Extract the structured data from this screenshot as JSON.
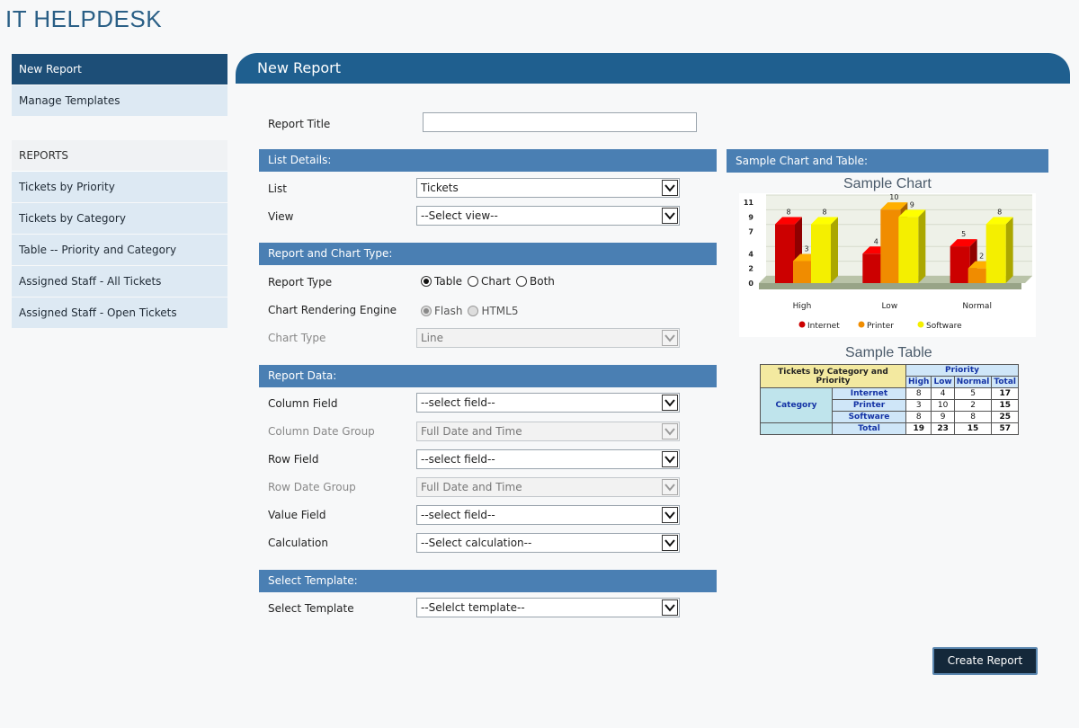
{
  "app": {
    "title": "IT HELPDESK"
  },
  "sidebar": {
    "items": [
      {
        "label": "New Report"
      },
      {
        "label": "Manage Templates"
      }
    ],
    "reports_heading": "REPORTS",
    "reports": [
      {
        "label": "Tickets by Priority"
      },
      {
        "label": "Tickets by Category"
      },
      {
        "label": "Table -- Priority and Category"
      },
      {
        "label": "Assigned Staff - All Tickets"
      },
      {
        "label": "Assigned Staff - Open Tickets"
      }
    ]
  },
  "main": {
    "title": "New Report",
    "report_title": {
      "label": "Report Title",
      "value": ""
    },
    "list_details": {
      "heading": "List Details:",
      "list": {
        "label": "List",
        "value": "Tickets"
      },
      "view": {
        "label": "View",
        "value": "--Select view--"
      }
    },
    "report_chart_type": {
      "heading": "Report and Chart Type:",
      "report_type": {
        "label": "Report Type",
        "options": [
          "Table",
          "Chart",
          "Both"
        ],
        "selected": "Table"
      },
      "engine": {
        "label": "Chart Rendering Engine",
        "options": [
          "Flash",
          "HTML5"
        ],
        "selected": "Flash"
      },
      "chart_type": {
        "label": "Chart Type",
        "value": "Line"
      }
    },
    "report_data": {
      "heading": "Report Data:",
      "column_field": {
        "label": "Column Field",
        "value": "--select field--"
      },
      "column_date_group": {
        "label": "Column Date Group",
        "value": "Full Date and Time"
      },
      "row_field": {
        "label": "Row Field",
        "value": "--select field--"
      },
      "row_date_group": {
        "label": "Row Date Group",
        "value": "Full Date and Time"
      },
      "value_field": {
        "label": "Value Field",
        "value": "--select field--"
      },
      "calculation": {
        "label": "Calculation",
        "value": "--Select calculation--"
      }
    },
    "template": {
      "heading": "Select Template:",
      "select": {
        "label": "Select Template",
        "value": "--Selelct template--"
      }
    },
    "create_button": "Create Report"
  },
  "sample": {
    "heading": "Sample Chart and Table:",
    "chart_title": "Sample Chart",
    "table_title": "Sample Table",
    "table": {
      "corner": "Tickets by Category and Priority",
      "group": "Priority",
      "row_group": "Category",
      "columns": [
        "High",
        "Low",
        "Normal",
        "Total"
      ],
      "rows": [
        {
          "label": "Internet",
          "values": [
            "8",
            "4",
            "5",
            "17"
          ]
        },
        {
          "label": "Printer",
          "values": [
            "3",
            "10",
            "2",
            "15"
          ]
        },
        {
          "label": "Software",
          "values": [
            "8",
            "9",
            "8",
            "25"
          ]
        },
        {
          "label": "Total",
          "values": [
            "19",
            "23",
            "15",
            "57"
          ]
        }
      ]
    }
  },
  "chart_data": {
    "type": "bar",
    "title": "Sample Chart",
    "categories": [
      "High",
      "Low",
      "Normal"
    ],
    "series": [
      {
        "name": "Internet",
        "values": [
          8,
          4,
          5
        ],
        "color": "#cc0000"
      },
      {
        "name": "Printer",
        "values": [
          3,
          10,
          2
        ],
        "color": "#f08c00"
      },
      {
        "name": "Software",
        "values": [
          8,
          9,
          8
        ],
        "color": "#f4ef00"
      }
    ],
    "y_ticks": [
      "0",
      "2",
      "4",
      "7",
      "9",
      "11"
    ],
    "ylim": [
      0,
      11
    ],
    "legend": "bottom"
  }
}
